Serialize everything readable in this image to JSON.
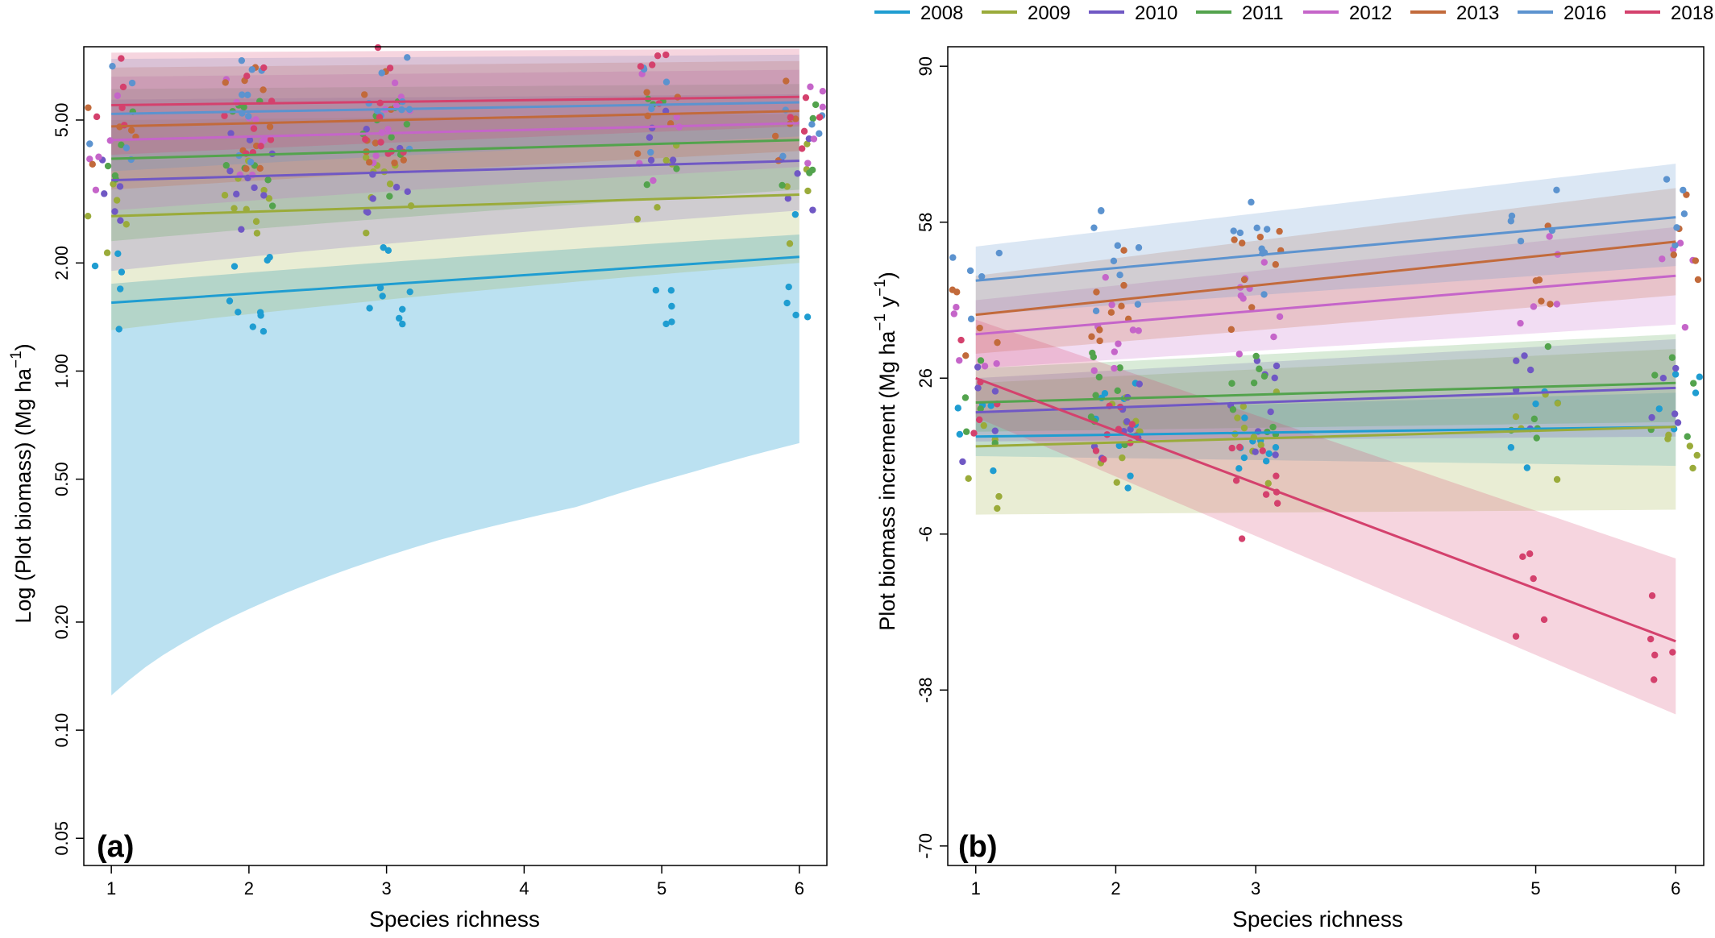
{
  "legend": {
    "placement": "top",
    "items": [
      {
        "label": "2008",
        "color": "#1f9dd1"
      },
      {
        "label": "2009",
        "color": "#9aab3a"
      },
      {
        "label": "2010",
        "color": "#7058c4"
      },
      {
        "label": "2011",
        "color": "#53a34d"
      },
      {
        "label": "2012",
        "color": "#c565c9"
      },
      {
        "label": "2013",
        "color": "#c26a3b"
      },
      {
        "label": "2016",
        "color": "#5c93cf"
      },
      {
        "label": "2018",
        "color": "#d4416d"
      }
    ]
  },
  "chart_data": [
    {
      "type": "scatter",
      "panel_label": "(a)",
      "xlabel": "Species richness",
      "ylabel": "Log (Plot biomass) (Mg ha",
      "ylabel_sup": "−1",
      "ylabel_end": ")",
      "y_scale": "log",
      "xlim": [
        0.8,
        6.2
      ],
      "ylim": [
        0.042,
        8.0
      ],
      "x_ticks": [
        "1",
        "2",
        "3",
        "4",
        "5",
        "6"
      ],
      "y_ticks": [
        "0.05",
        "0.10",
        "0.20",
        "0.50",
        "1.00",
        "2.00",
        "5.00"
      ],
      "y_tick_values": [
        0.05,
        0.1,
        0.2,
        0.5,
        1,
        2,
        5
      ],
      "series": [
        {
          "name": "2008",
          "fit_x": [
            1,
            6
          ],
          "fit_y": [
            1.55,
            2.08
          ],
          "ci_lower": [
            0.125,
            0.155,
            0.2,
            0.27,
            0.34,
            0.42,
            0.52,
            0.63
          ],
          "ci_upper": [
            1.75,
            2.4
          ],
          "ci_x": [
            1,
            1.3,
            1.8,
            2.6,
            3.4,
            4.4,
            5.2,
            6
          ],
          "band_upper_only": true,
          "points": {
            "x": [
              1,
              2,
              3,
              5,
              6
            ],
            "y": [
              1.5,
              1.6,
              1.7,
              1.8,
              2.0
            ]
          }
        },
        {
          "name": "2009",
          "fit_x": [
            1,
            6
          ],
          "fit_y": [
            2.7,
            3.1
          ],
          "ci_lower": [
            1.3,
            2.0
          ],
          "ci_upper": [
            5.0,
            5.2
          ],
          "points": {
            "x": [
              1,
              2,
              3,
              5,
              6
            ],
            "y": [
              2.6,
              2.8,
              2.9,
              3.0,
              3.2
            ]
          }
        },
        {
          "name": "2010",
          "fit_x": [
            1,
            6
          ],
          "fit_y": [
            3.4,
            3.85
          ],
          "ci_lower": [
            1.9,
            2.8
          ],
          "ci_upper": [
            5.7,
            5.9
          ],
          "points": {
            "x": [
              1,
              2,
              3,
              5,
              6
            ],
            "y": [
              3.4,
              3.5,
              3.6,
              3.8,
              3.9
            ]
          }
        },
        {
          "name": "2011",
          "fit_x": [
            1,
            6
          ],
          "fit_y": [
            3.9,
            4.4
          ],
          "ci_lower": [
            2.3,
            3.2
          ],
          "ci_upper": [
            6.1,
            6.3
          ],
          "points": {
            "x": [
              1,
              2,
              3,
              5,
              6
            ],
            "y": [
              3.9,
              4.0,
              4.1,
              4.3,
              4.4
            ]
          }
        },
        {
          "name": "2012",
          "fit_x": [
            1,
            6
          ],
          "fit_y": [
            4.4,
            4.9
          ],
          "ci_lower": [
            2.8,
            3.7
          ],
          "ci_upper": [
            6.6,
            6.9
          ],
          "points": {
            "x": [
              1,
              2,
              3,
              5,
              6
            ],
            "y": [
              4.4,
              4.6,
              4.7,
              4.8,
              4.9
            ]
          }
        },
        {
          "name": "2013",
          "fit_x": [
            1,
            6
          ],
          "fit_y": [
            4.8,
            5.3
          ],
          "ci_lower": [
            3.2,
            4.1
          ],
          "ci_upper": [
            7.0,
            7.3
          ],
          "points": {
            "x": [
              1,
              2,
              3,
              5,
              6
            ],
            "y": [
              4.8,
              5.0,
              5.1,
              5.2,
              5.3
            ]
          }
        },
        {
          "name": "2016",
          "fit_x": [
            1,
            6
          ],
          "fit_y": [
            5.2,
            5.6
          ],
          "ci_lower": [
            3.6,
            4.5
          ],
          "ci_upper": [
            7.4,
            7.6
          ],
          "points": {
            "x": [
              1,
              2,
              3,
              5,
              6
            ],
            "y": [
              5.2,
              5.3,
              5.4,
              5.5,
              5.6
            ]
          }
        },
        {
          "name": "2018",
          "fit_x": [
            1,
            6
          ],
          "fit_y": [
            5.5,
            5.8
          ],
          "ci_lower": [
            4.0,
            4.8
          ],
          "ci_upper": [
            7.7,
            7.9
          ],
          "points": {
            "x": [
              1,
              2,
              3,
              5,
              6
            ],
            "y": [
              5.5,
              5.6,
              5.7,
              5.8,
              5.8
            ]
          }
        }
      ]
    },
    {
      "type": "scatter",
      "panel_label": "(b)",
      "xlabel": "Species richness",
      "ylabel": "Plot biomass increment (Mg ha",
      "ylabel_sup1": "−1",
      "ylabel_mid": " y",
      "ylabel_sup2": "−1",
      "ylabel_end": ")",
      "y_scale": "linear",
      "xlim": [
        0.8,
        6.2
      ],
      "ylim": [
        -74,
        94
      ],
      "x_ticks": [
        "1",
        "2",
        "3",
        "5",
        "6"
      ],
      "x_tick_values": [
        1,
        2,
        3,
        5,
        6
      ],
      "y_ticks": [
        "-70",
        "-38",
        "-6",
        "26",
        "58",
        "90"
      ],
      "y_tick_values": [
        -70,
        -38,
        -6,
        26,
        58,
        90
      ],
      "series": [
        {
          "name": "2008",
          "fit_x": [
            1,
            6
          ],
          "fit_y": [
            14,
            16
          ],
          "ci_lower": [
            10,
            8
          ],
          "ci_upper": [
            19,
            23
          ],
          "points": {
            "x": [
              1,
              2,
              3,
              5,
              6
            ],
            "y": [
              13,
              14,
              15,
              16,
              16
            ]
          }
        },
        {
          "name": "2009",
          "fit_x": [
            1,
            6
          ],
          "fit_y": [
            12,
            16
          ],
          "ci_lower": [
            -2,
            -1
          ],
          "ci_upper": [
            25,
            32
          ],
          "points": {
            "x": [
              1,
              2,
              3,
              5,
              6
            ],
            "y": [
              10,
              12,
              14,
              15,
              16
            ]
          }
        },
        {
          "name": "2010",
          "fit_x": [
            1,
            6
          ],
          "fit_y": [
            19,
            24
          ],
          "ci_lower": [
            13,
            14
          ],
          "ci_upper": [
            26,
            34
          ],
          "points": {
            "x": [
              1,
              2,
              3,
              5,
              6
            ],
            "y": [
              18,
              20,
              21,
              23,
              24
            ]
          }
        },
        {
          "name": "2011",
          "fit_x": [
            1,
            6
          ],
          "fit_y": [
            21,
            25
          ],
          "ci_lower": [
            15,
            17
          ],
          "ci_upper": [
            28,
            35
          ],
          "points": {
            "x": [
              1,
              2,
              3,
              5,
              6
            ],
            "y": [
              20,
              22,
              23,
              24,
              25
            ]
          }
        },
        {
          "name": "2012",
          "fit_x": [
            1,
            6
          ],
          "fit_y": [
            35,
            47
          ],
          "ci_lower": [
            28,
            37
          ],
          "ci_upper": [
            42,
            57
          ],
          "points": {
            "x": [
              1,
              2,
              3,
              5,
              6
            ],
            "y": [
              34,
              38,
              41,
              45,
              47
            ]
          }
        },
        {
          "name": "2013",
          "fit_x": [
            1,
            6
          ],
          "fit_y": [
            39,
            54
          ],
          "ci_lower": [
            31,
            43
          ],
          "ci_upper": [
            47,
            65
          ],
          "points": {
            "x": [
              1,
              2,
              3,
              5,
              6
            ],
            "y": [
              38,
              43,
              46,
              51,
              54
            ]
          }
        },
        {
          "name": "2016",
          "fit_x": [
            1,
            6
          ],
          "fit_y": [
            46,
            59
          ],
          "ci_lower": [
            39,
            49
          ],
          "ci_upper": [
            53,
            70
          ],
          "points": {
            "x": [
              1,
              2,
              3,
              5,
              6
            ],
            "y": [
              45,
              50,
              53,
              57,
              59
            ]
          }
        },
        {
          "name": "2018",
          "fit_x": [
            1,
            6
          ],
          "fit_y": [
            26,
            -28
          ],
          "ci_lower": [
            18,
            -43
          ],
          "ci_upper": [
            38,
            -11
          ],
          "points": {
            "x": [
              1,
              2,
              3,
              5,
              6
            ],
            "y": [
              24,
              14,
              4,
              -18,
              -28
            ]
          }
        }
      ]
    }
  ]
}
